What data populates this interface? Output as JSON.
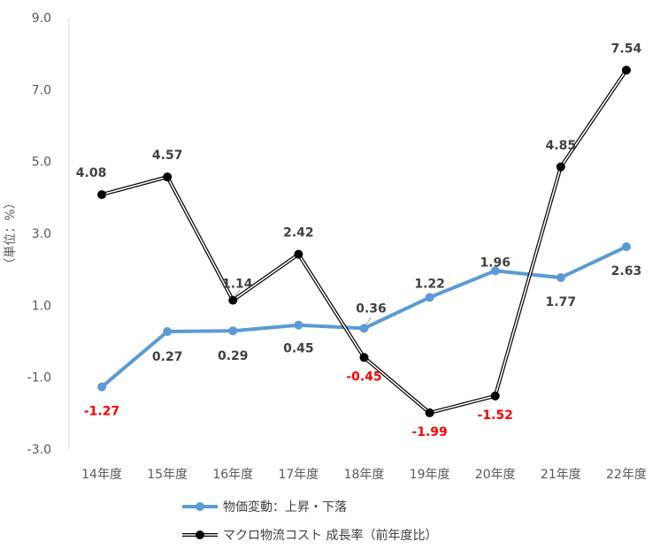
{
  "chart_data": {
    "type": "line",
    "categories": [
      "14年度",
      "15年度",
      "16年度",
      "17年度",
      "18年度",
      "19年度",
      "20年度",
      "21年度",
      "22年度"
    ],
    "ylabel": "（単位：%）",
    "ylim": [
      -3.0,
      9.0
    ],
    "yticks": [
      "-3.0",
      "-1.0",
      "1.0",
      "3.0",
      "5.0",
      "7.0",
      "9.0"
    ],
    "grid": false,
    "legend_position": "bottom",
    "series": [
      {
        "name": "物価変動：上昇・下落",
        "values": [
          -1.27,
          0.27,
          0.29,
          0.45,
          0.36,
          1.22,
          1.96,
          1.77,
          2.63
        ],
        "labels": [
          "-1.27",
          "0.27",
          "0.29",
          "0.45",
          "0.36",
          "1.22",
          "1.96",
          "1.77",
          "2.63"
        ],
        "color": "#5B9BD5"
      },
      {
        "name": "マクロ物流コスト 成長率（前年度比）",
        "values": [
          4.08,
          4.57,
          1.14,
          2.42,
          -0.45,
          -1.99,
          -1.52,
          4.85,
          7.54
        ],
        "labels": [
          "4.08",
          "4.57",
          "1.14",
          "2.42",
          "-0.45",
          "-1.99",
          "-1.52",
          "4.85",
          "7.54"
        ],
        "color": "#000000"
      }
    ],
    "negative_label_color": "#FF0000",
    "positive_label_color": "#404040"
  }
}
